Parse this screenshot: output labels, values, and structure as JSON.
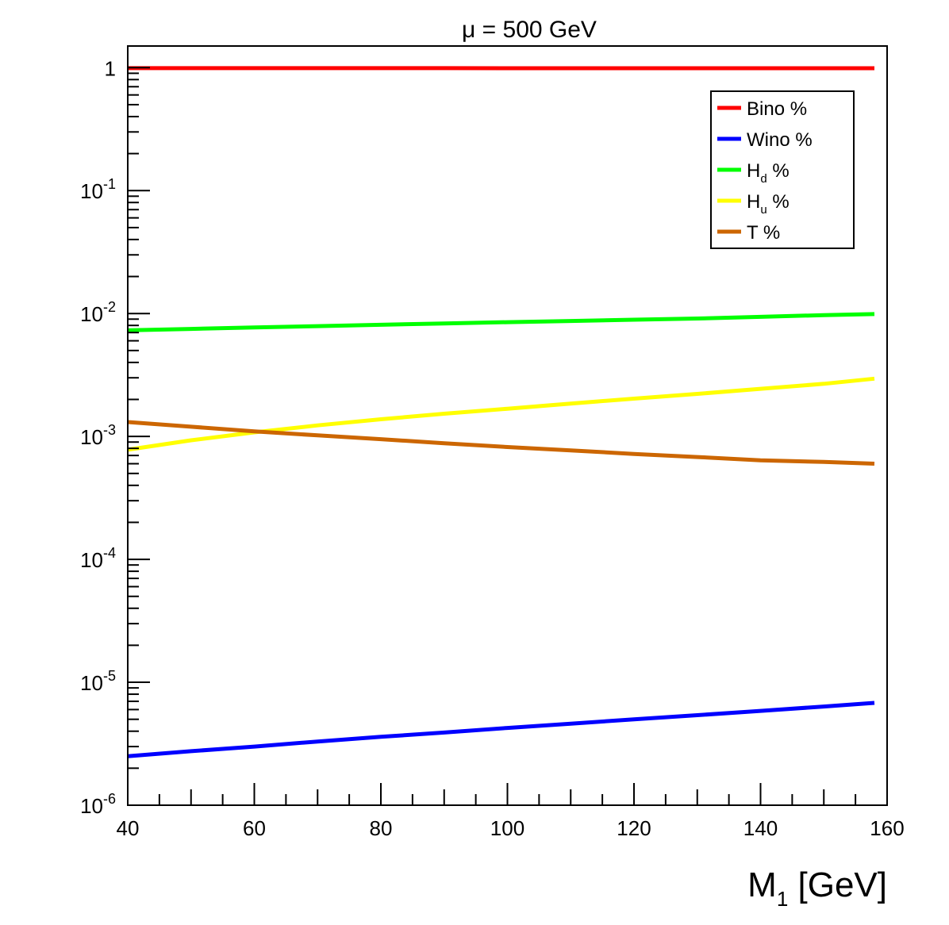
{
  "chart_data": {
    "type": "line",
    "title": "μ = 500 GeV",
    "xlabel_main": "M",
    "xlabel_sub": "1",
    "xlabel_rest": " [GeV]",
    "ylabel": "",
    "xlim": [
      40,
      160
    ],
    "ylim": [
      1e-06,
      1.5
    ],
    "yscale": "log",
    "x_ticks": [
      "40",
      "60",
      "80",
      "100",
      "120",
      "140",
      "160"
    ],
    "y_ticks": [
      {
        "base": "10",
        "exp": "-6",
        "value": 1e-06
      },
      {
        "base": "10",
        "exp": "-5",
        "value": 1e-05
      },
      {
        "base": "10",
        "exp": "-4",
        "value": 0.0001
      },
      {
        "base": "10",
        "exp": "-3",
        "value": 0.001
      },
      {
        "base": "10",
        "exp": "-2",
        "value": 0.01
      },
      {
        "base": "10",
        "exp": "-1",
        "value": 0.1
      },
      {
        "base": "1",
        "exp": "",
        "value": 1
      }
    ],
    "x": [
      40,
      50,
      60,
      70,
      80,
      90,
      100,
      110,
      120,
      130,
      140,
      150,
      158
    ],
    "series": [
      {
        "name": "Bino %",
        "label_main": "Bino %",
        "label_sub": "",
        "label_rest": "",
        "color": "#ff0000",
        "values": [
          0.991,
          0.991,
          0.991,
          0.991,
          0.991,
          0.991,
          0.99,
          0.99,
          0.99,
          0.99,
          0.99,
          0.99,
          0.99
        ]
      },
      {
        "name": "Wino %",
        "label_main": "Wino %",
        "label_sub": "",
        "label_rest": "",
        "color": "#0000ff",
        "values": [
          2.5e-06,
          2.75e-06,
          3e-06,
          3.3e-06,
          3.6e-06,
          3.9e-06,
          4.25e-06,
          4.6e-06,
          5e-06,
          5.4e-06,
          5.85e-06,
          6.35e-06,
          6.8e-06
        ]
      },
      {
        "name": "Hd %",
        "label_main": "H",
        "label_sub": "d",
        "label_rest": " %",
        "color": "#00ff00",
        "values": [
          0.0073,
          0.0075,
          0.0077,
          0.0079,
          0.0081,
          0.0083,
          0.0085,
          0.0087,
          0.0089,
          0.0091,
          0.0094,
          0.0097,
          0.0099
        ]
      },
      {
        "name": "Hu %",
        "label_main": "H",
        "label_sub": "u",
        "label_rest": " %",
        "color": "#ffff00",
        "values": [
          0.00078,
          0.00093,
          0.00108,
          0.00123,
          0.00138,
          0.00153,
          0.00168,
          0.00185,
          0.00203,
          0.00222,
          0.00244,
          0.00268,
          0.00295
        ]
      },
      {
        "name": "T %",
        "label_main": "T %",
        "label_sub": "",
        "label_rest": "",
        "color": "#cc6600",
        "values": [
          0.00131,
          0.0012,
          0.0011,
          0.00102,
          0.00095,
          0.00088,
          0.00082,
          0.00077,
          0.00072,
          0.00068,
          0.00064,
          0.00062,
          0.0006
        ]
      }
    ],
    "legend_position": "top-right",
    "grid": false
  }
}
